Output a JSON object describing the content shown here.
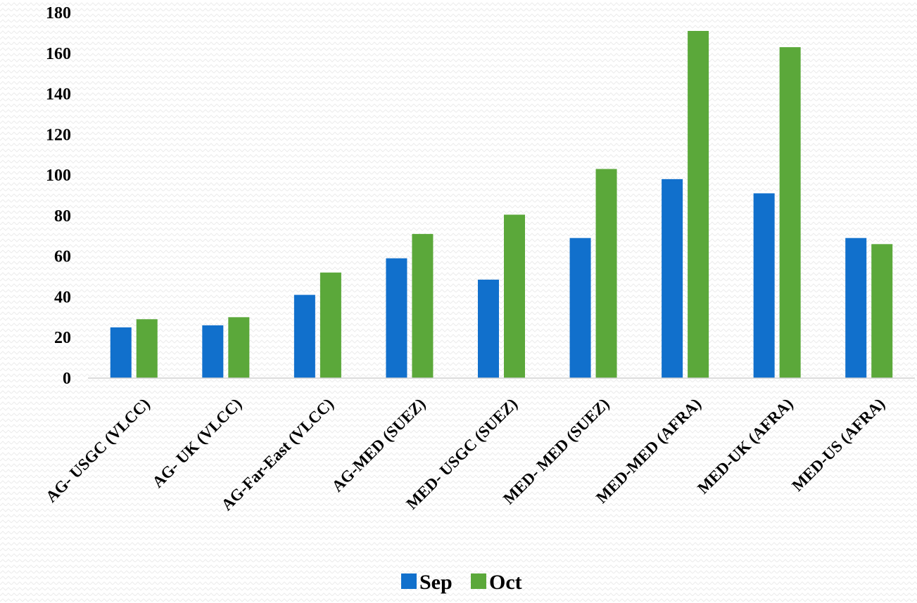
{
  "chart_data": {
    "type": "bar",
    "categories": [
      "AG- USGC (VLCC)",
      "AG- UK (VLCC)",
      "AG-Far-East (VLCC)",
      "AG-MED (SUEZ)",
      "MED- USGC (SUEZ)",
      "MED- MED (SUEZ)",
      "MED-MED (AFRA)",
      "MED-UK (AFRA)",
      "MED-US (AFRA)"
    ],
    "series": [
      {
        "name": "Sep",
        "color": "#1170CC",
        "values": [
          25,
          26,
          41,
          59,
          48.5,
          69,
          98,
          91,
          69
        ]
      },
      {
        "name": "Oct",
        "color": "#5BA83A",
        "values": [
          29,
          30,
          52,
          71,
          80.5,
          103,
          171,
          163,
          66
        ]
      }
    ],
    "ylim": [
      0,
      180
    ],
    "yticks": [
      0,
      20,
      40,
      60,
      80,
      100,
      120,
      140,
      160,
      180
    ],
    "grid": false,
    "legend_position": "bottom-center"
  }
}
